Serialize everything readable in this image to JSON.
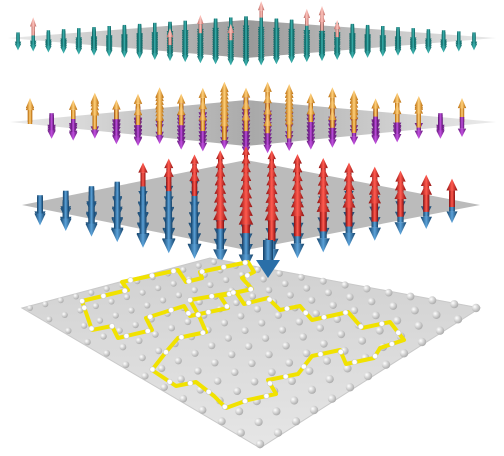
{
  "figure": {
    "layers": [
      {
        "id": "top",
        "arrows": "dense",
        "colors": {
          "down": "#1f8f8c",
          "up": "#f19a93"
        },
        "plane": "#9a9a9a"
      },
      {
        "id": "second",
        "arrows": "striped",
        "colors": {
          "a": "#8b2aa8",
          "b": "#f0a022"
        },
        "plane": "#a5a5a5"
      },
      {
        "id": "third",
        "arrows": "domains",
        "colors": {
          "up": "#d91f1f",
          "down": "#2a6fa8"
        },
        "plane": "#b0b0b0"
      },
      {
        "id": "bottom",
        "content": "lattice-with-loop-paths",
        "colors": {
          "path": "#f1e200",
          "node": "#f2f2f2"
        },
        "plane": "#d9d9d9"
      }
    ]
  }
}
